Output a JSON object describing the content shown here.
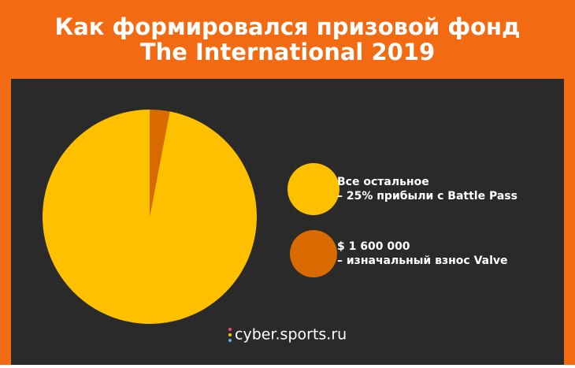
{
  "chart_data": {
    "type": "pie",
    "title": [
      "Как формировался призовой фонд",
      "The International 2019"
    ],
    "categories": [
      [
        "Все остальное",
        "– 25% прибыли с Battle Pass"
      ],
      [
        "$ 1 600 000",
        "– изначальный взнос Valve"
      ]
    ],
    "values": [
      97,
      3
    ],
    "colors": [
      "#ffc000",
      "#d86a00"
    ],
    "source": "cyber.sports.ru"
  }
}
